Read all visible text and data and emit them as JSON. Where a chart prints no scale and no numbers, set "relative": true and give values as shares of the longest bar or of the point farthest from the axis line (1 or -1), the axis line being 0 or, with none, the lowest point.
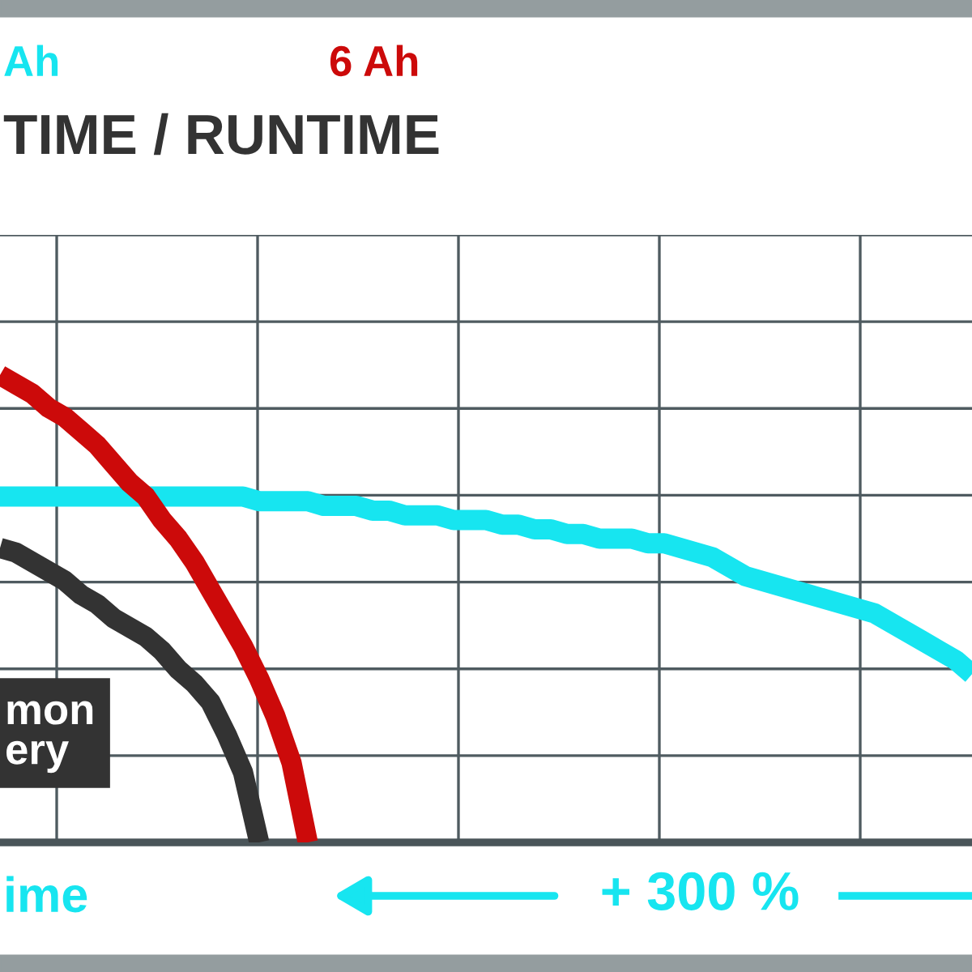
{
  "chart_data": {
    "type": "line",
    "relative": true,
    "title": "TIME / RUNTIME",
    "grid": true,
    "annotations": [
      "ime",
      "+ 300 %"
    ],
    "categories": [
      null,
      null,
      null,
      null,
      null,
      null,
      null,
      null,
      null,
      null,
      null,
      null,
      null,
      null,
      null,
      null,
      null,
      null,
      null,
      null,
      null,
      null,
      null,
      null,
      null,
      null,
      null,
      null,
      null,
      null,
      null,
      null,
      null,
      null,
      null,
      null,
      null,
      null,
      null,
      null,
      null,
      null,
      null,
      null,
      null,
      null,
      null,
      null,
      null,
      null,
      null,
      null,
      null,
      null,
      null,
      null,
      null,
      null,
      null,
      null,
      null
    ],
    "series": [
      {
        "name": "Ah",
        "color": "#17e5f0",
        "values": [
          0.74,
          0.74,
          0.74,
          0.74,
          0.74,
          0.74,
          0.74,
          0.74,
          0.74,
          0.74,
          0.74,
          0.74,
          0.74,
          0.74,
          0.74,
          0.74,
          0.73,
          0.73,
          0.73,
          0.73,
          0.72,
          0.72,
          0.72,
          0.71,
          0.71,
          0.7,
          0.7,
          0.7,
          0.69,
          0.69,
          0.69,
          0.68,
          0.68,
          0.67,
          0.67,
          0.66,
          0.66,
          0.65,
          0.65,
          0.65,
          0.64,
          0.64,
          0.63,
          0.62,
          0.61,
          0.59,
          0.57,
          0.56,
          0.55,
          0.54,
          0.53,
          0.52,
          0.51,
          0.5,
          0.49,
          0.47,
          0.45,
          0.43,
          0.41,
          0.39,
          0.36
        ]
      },
      {
        "name": "6 Ah",
        "color": "#cc0a0a",
        "values": [
          1.0,
          0.98,
          0.96,
          0.93,
          0.91,
          0.88,
          0.85,
          0.81,
          0.77,
          0.74,
          0.69,
          0.65,
          0.6,
          0.54,
          0.48,
          0.42,
          0.35,
          0.27,
          0.17,
          0,
          null,
          null,
          null,
          null,
          null,
          null,
          null,
          null,
          null,
          null,
          null,
          null,
          null,
          null,
          null,
          null,
          null,
          null,
          null,
          null,
          null,
          null,
          null,
          null,
          null,
          null,
          null,
          null,
          null,
          null,
          null,
          null,
          null,
          null,
          null,
          null,
          null,
          null,
          null,
          null,
          null
        ]
      },
      {
        "name": "mon\nery",
        "color": "#333333",
        "values": [
          0.63,
          0.62,
          0.6,
          0.58,
          0.56,
          0.53,
          0.51,
          0.48,
          0.46,
          0.44,
          0.41,
          0.37,
          0.34,
          0.3,
          0.23,
          0.15,
          0,
          null,
          null,
          null,
          null,
          null,
          null,
          null,
          null,
          null,
          null,
          null,
          null,
          null,
          null,
          null,
          null,
          null,
          null,
          null,
          null,
          null,
          null,
          null,
          null,
          null,
          null,
          null,
          null,
          null,
          null,
          null,
          null,
          null,
          null,
          null,
          null,
          null,
          null,
          null,
          null,
          null,
          null,
          null,
          null
        ]
      }
    ]
  }
}
